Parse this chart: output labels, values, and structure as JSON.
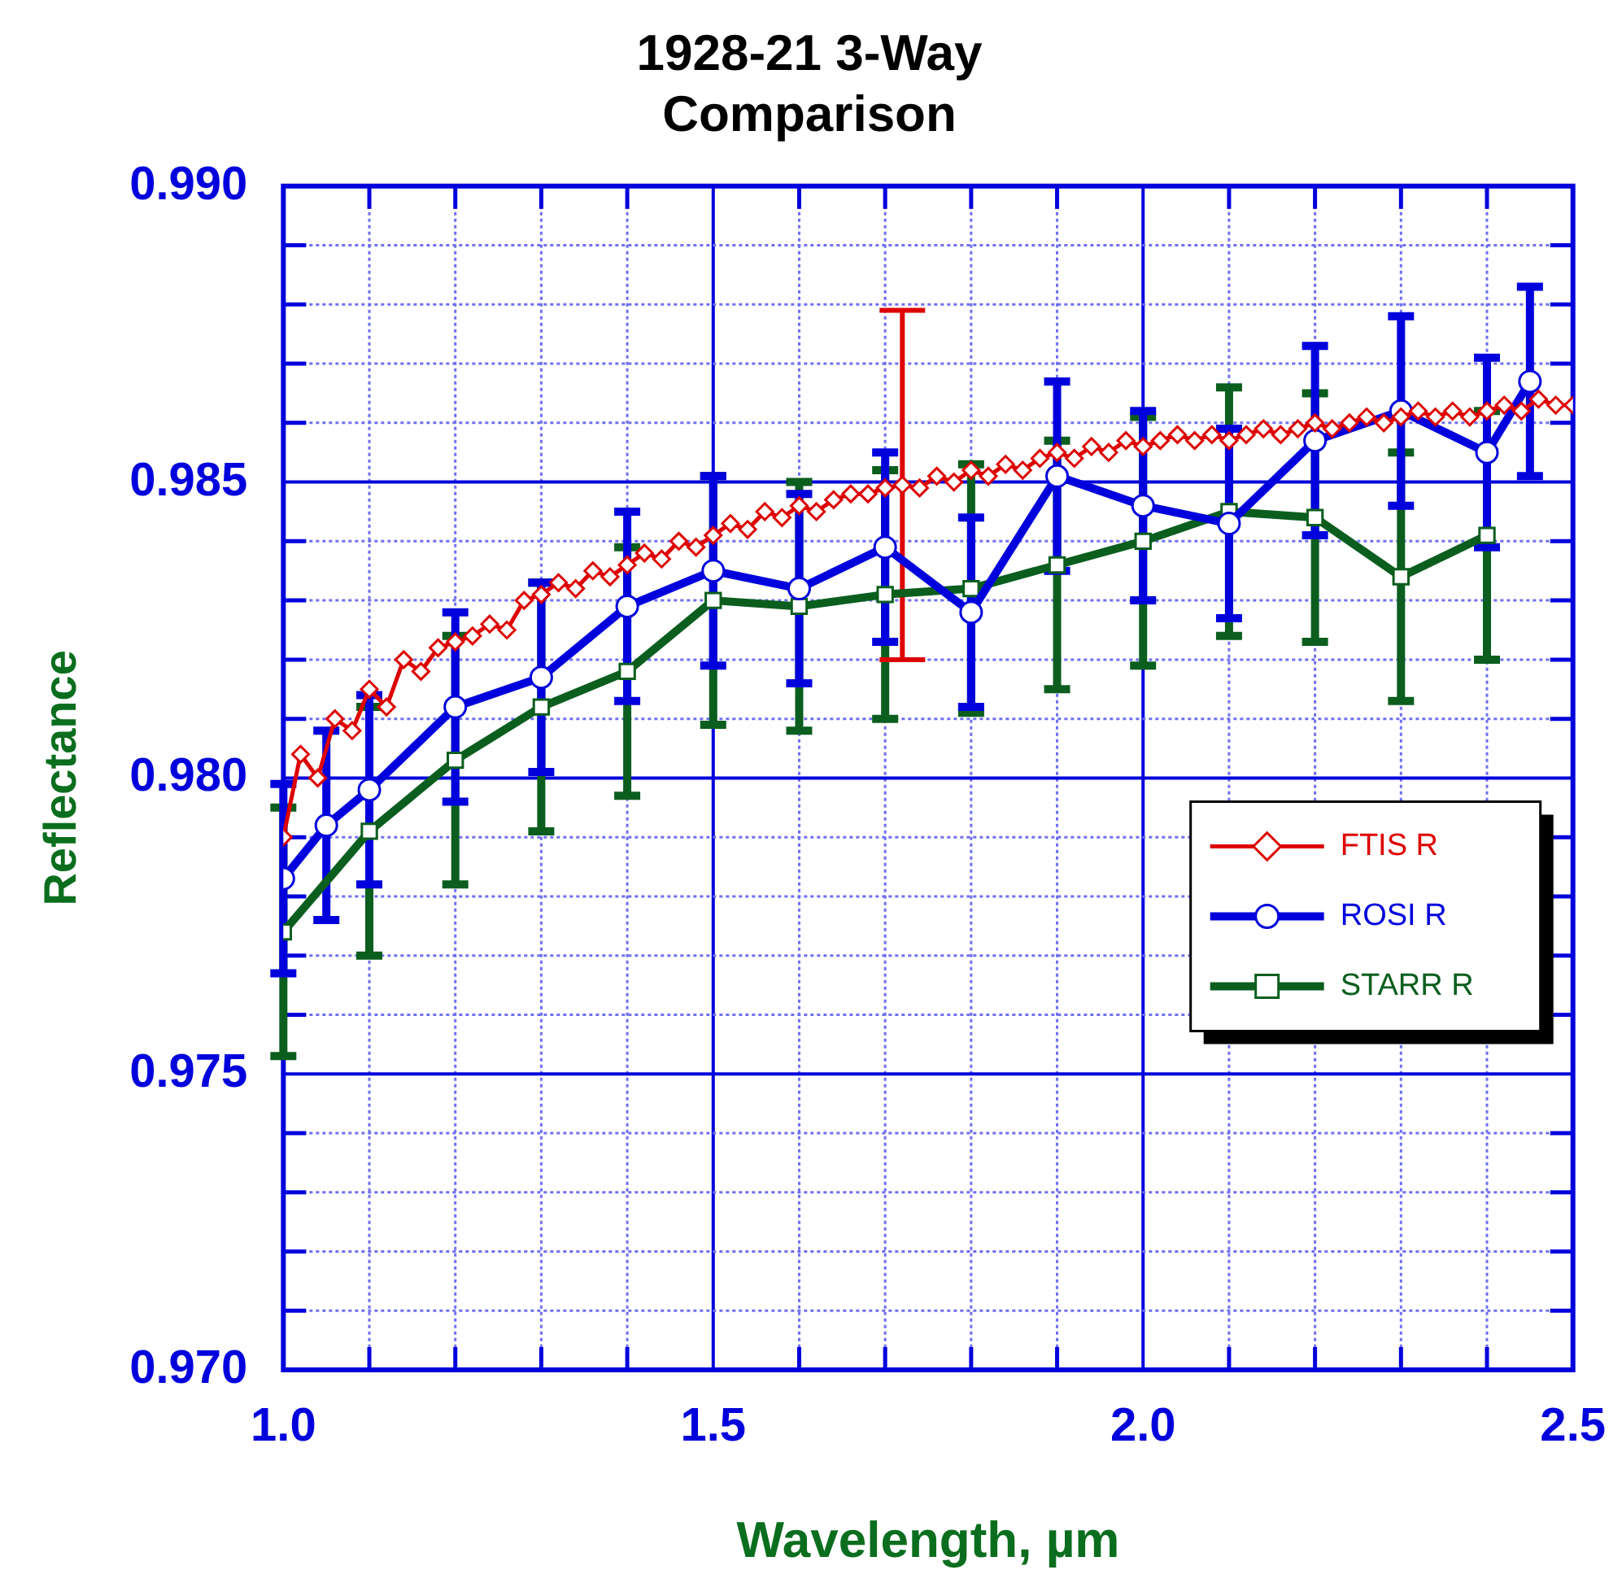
{
  "chart_data": {
    "type": "line",
    "title": "1928-21 3-Way Comparison",
    "xlabel": "Wavelength, µm",
    "ylabel": "Reflectance",
    "xlim": [
      1.0,
      2.5
    ],
    "ylim": [
      0.97,
      0.99
    ],
    "xticks": [
      {
        "value": 1.0,
        "label": "1.0"
      },
      {
        "value": 1.1,
        "label": null
      },
      {
        "value": 1.2,
        "label": null
      },
      {
        "value": 1.3,
        "label": null
      },
      {
        "value": 1.4,
        "label": null
      },
      {
        "value": 1.5,
        "label": "1.5"
      },
      {
        "value": 1.6,
        "label": null
      },
      {
        "value": 1.7,
        "label": null
      },
      {
        "value": 1.8,
        "label": null
      },
      {
        "value": 1.9,
        "label": null
      },
      {
        "value": 2.0,
        "label": "2.0"
      },
      {
        "value": 2.1,
        "label": null
      },
      {
        "value": 2.2,
        "label": null
      },
      {
        "value": 2.3,
        "label": null
      },
      {
        "value": 2.4,
        "label": null
      },
      {
        "value": 2.5,
        "label": "2.5"
      }
    ],
    "yticks": [
      {
        "value": 0.97,
        "label": "0.970"
      },
      {
        "value": 0.971,
        "label": null
      },
      {
        "value": 0.972,
        "label": null
      },
      {
        "value": 0.973,
        "label": null
      },
      {
        "value": 0.974,
        "label": null
      },
      {
        "value": 0.975,
        "label": "0.975"
      },
      {
        "value": 0.976,
        "label": null
      },
      {
        "value": 0.977,
        "label": null
      },
      {
        "value": 0.978,
        "label": null
      },
      {
        "value": 0.979,
        "label": null
      },
      {
        "value": 0.98,
        "label": "0.980"
      },
      {
        "value": 0.981,
        "label": null
      },
      {
        "value": 0.982,
        "label": null
      },
      {
        "value": 0.983,
        "label": null
      },
      {
        "value": 0.984,
        "label": null
      },
      {
        "value": 0.985,
        "label": "0.985"
      },
      {
        "value": 0.986,
        "label": null
      },
      {
        "value": 0.987,
        "label": null
      },
      {
        "value": 0.988,
        "label": null
      },
      {
        "value": 0.989,
        "label": null
      },
      {
        "value": 0.99,
        "label": "0.990"
      }
    ],
    "grid": true,
    "legend": "right",
    "line_style": "solid",
    "series": [
      {
        "name": "FTIS R",
        "color": "#dd0000",
        "marker": "diamond",
        "x": [
          1.0,
          1.02,
          1.04,
          1.06,
          1.08,
          1.1,
          1.12,
          1.14,
          1.16,
          1.18,
          1.2,
          1.22,
          1.24,
          1.26,
          1.28,
          1.3,
          1.32,
          1.34,
          1.36,
          1.38,
          1.4,
          1.42,
          1.44,
          1.46,
          1.48,
          1.5,
          1.52,
          1.54,
          1.56,
          1.58,
          1.6,
          1.62,
          1.64,
          1.66,
          1.68,
          1.7,
          1.72,
          1.74,
          1.76,
          1.78,
          1.8,
          1.82,
          1.84,
          1.86,
          1.88,
          1.9,
          1.92,
          1.94,
          1.96,
          1.98,
          2.0,
          2.02,
          2.04,
          2.06,
          2.08,
          2.1,
          2.12,
          2.14,
          2.16,
          2.18,
          2.2,
          2.22,
          2.24,
          2.26,
          2.28,
          2.3,
          2.32,
          2.34,
          2.36,
          2.38,
          2.4,
          2.42,
          2.44,
          2.46,
          2.48,
          2.5
        ],
        "values": [
          0.979,
          0.9804,
          0.98,
          0.981,
          0.9808,
          0.9815,
          0.9812,
          0.982,
          0.9818,
          0.9822,
          0.9823,
          0.9824,
          0.9826,
          0.9825,
          0.983,
          0.9831,
          0.9833,
          0.9832,
          0.9835,
          0.9834,
          0.9836,
          0.9838,
          0.9837,
          0.984,
          0.9839,
          0.9841,
          0.9843,
          0.9842,
          0.9845,
          0.9844,
          0.9846,
          0.9845,
          0.9847,
          0.9848,
          0.9848,
          0.9849,
          0.98495,
          0.9849,
          0.9851,
          0.985,
          0.9852,
          0.9851,
          0.9853,
          0.9852,
          0.9854,
          0.9855,
          0.9854,
          0.9856,
          0.9855,
          0.9857,
          0.9856,
          0.9857,
          0.9858,
          0.9857,
          0.9858,
          0.9857,
          0.9858,
          0.9859,
          0.9858,
          0.9859,
          0.986,
          0.9859,
          0.986,
          0.9861,
          0.986,
          0.9861,
          0.9862,
          0.9861,
          0.9862,
          0.9861,
          0.9862,
          0.9863,
          0.9862,
          0.9864,
          0.9863,
          0.9863
        ],
        "errors": [
          null,
          null,
          null,
          null,
          null,
          null,
          null,
          null,
          null,
          null,
          null,
          null,
          null,
          null,
          null,
          null,
          null,
          null,
          null,
          null,
          null,
          null,
          null,
          null,
          null,
          null,
          null,
          null,
          null,
          null,
          null,
          null,
          null,
          null,
          null,
          null,
          [
            0.982,
            0.9879
          ],
          null,
          null,
          null,
          null,
          null,
          null,
          null,
          null,
          null,
          null,
          null,
          null,
          null,
          null,
          null,
          null,
          null,
          null,
          null,
          null,
          null,
          null,
          null,
          null,
          null,
          null,
          null,
          null,
          null,
          null,
          null,
          null,
          null,
          null,
          null,
          null,
          null,
          null,
          null
        ]
      },
      {
        "name": "ROSI R",
        "color": "#0000dd",
        "marker": "circle",
        "x": [
          1.0,
          1.05,
          1.1,
          1.2,
          1.3,
          1.4,
          1.5,
          1.6,
          1.7,
          1.8,
          1.9,
          2.0,
          2.1,
          2.2,
          2.3,
          2.4,
          2.45
        ],
        "values": [
          0.9783,
          0.9792,
          0.9798,
          0.9812,
          0.9817,
          0.9829,
          0.9835,
          0.9832,
          0.9839,
          0.9828,
          0.9851,
          0.9846,
          0.9843,
          0.9857,
          0.9862,
          0.9855,
          0.9867
        ],
        "errors": [
          0.0016,
          0.0016,
          0.0016,
          0.0016,
          0.0016,
          0.0016,
          0.0016,
          0.0016,
          0.0016,
          0.0016,
          0.0016,
          0.0016,
          0.0016,
          0.0016,
          0.0016,
          0.0016,
          0.0016
        ]
      },
      {
        "name": "STARR R",
        "color": "#0b5e1e",
        "marker": "square",
        "x": [
          1.0,
          1.1,
          1.2,
          1.3,
          1.4,
          1.5,
          1.6,
          1.7,
          1.8,
          1.9,
          2.0,
          2.1,
          2.2,
          2.3,
          2.4
        ],
        "values": [
          0.9774,
          0.9791,
          0.9803,
          0.9812,
          0.9818,
          0.983,
          0.9829,
          0.9831,
          0.9832,
          0.9836,
          0.984,
          0.9845,
          0.9844,
          0.9834,
          0.9841
        ],
        "errors": [
          0.0021,
          0.0021,
          0.0021,
          0.0021,
          0.0021,
          0.0021,
          0.0021,
          0.0021,
          0.0021,
          0.0021,
          0.0021,
          0.0021,
          0.0021,
          0.0021,
          0.0021
        ]
      }
    ]
  }
}
